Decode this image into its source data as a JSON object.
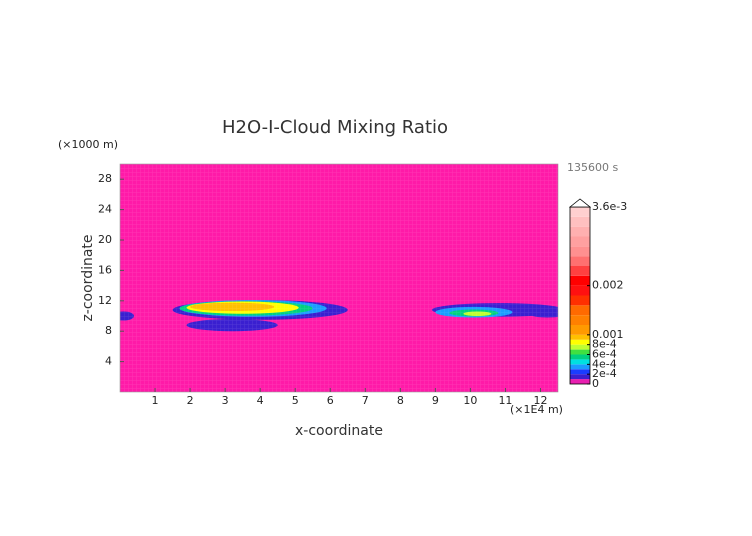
{
  "chart_data": {
    "type": "contour",
    "title": "H2O-I-Cloud Mixing Ratio",
    "y_unit": "(×1000 m)",
    "x_unit": "(×1E4 m)",
    "time": "135600 s",
    "xlabel": "x-coordinate",
    "ylabel": "z-coordinate",
    "xlim": [
      0,
      12.5
    ],
    "ylim": [
      0,
      30
    ],
    "xticks": [
      1,
      2,
      3,
      4,
      5,
      6,
      7,
      8,
      9,
      10,
      11,
      12
    ],
    "yticks": [
      4,
      8,
      12,
      16,
      20,
      24,
      28
    ],
    "background_color": "#ff1aa8",
    "features": [
      {
        "x": 0.1,
        "z": 10,
        "rx": 0.3,
        "rz": 0.6,
        "value": 0.00015
      },
      {
        "x": 3.2,
        "z": 8.8,
        "rx": 1.3,
        "rz": 0.8,
        "value": 0.00015
      },
      {
        "x": 4,
        "z": 10.8,
        "rx": 2.5,
        "rz": 1.3,
        "value": 0.00015
      },
      {
        "x": 3.8,
        "z": 11,
        "rx": 2.1,
        "rz": 1.1,
        "value": 0.00035
      },
      {
        "x": 3.6,
        "z": 11,
        "rx": 1.9,
        "rz": 0.95,
        "value": 0.00055
      },
      {
        "x": 3.5,
        "z": 11.1,
        "rx": 1.6,
        "rz": 0.8,
        "value": 0.00085
      },
      {
        "x": 3.2,
        "z": 11.2,
        "rx": 1.2,
        "rz": 0.55,
        "value": 0.00095
      },
      {
        "x": 10.8,
        "z": 10.8,
        "rx": 1.9,
        "rz": 0.9,
        "value": 0.00015
      },
      {
        "x": 12.2,
        "z": 10.2,
        "rx": 0.5,
        "rz": 0.4,
        "value": 0.00015
      },
      {
        "x": 10.1,
        "z": 10.5,
        "rx": 1.1,
        "rz": 0.7,
        "value": 0.00035
      },
      {
        "x": 10.1,
        "z": 10.4,
        "rx": 0.7,
        "rz": 0.45,
        "value": 0.00055
      },
      {
        "x": 10.2,
        "z": 10.3,
        "rx": 0.4,
        "rz": 0.3,
        "value": 0.00075
      }
    ],
    "colorbar": {
      "lim": [
        0,
        0.0036
      ],
      "ticks": [
        0,
        {
          "value": 0.0002,
          "label": "2e-4"
        },
        {
          "value": 0.0004,
          "label": "4e-4"
        },
        {
          "value": 0.0006,
          "label": "6e-4"
        },
        {
          "value": 0.0008,
          "label": "8e-4"
        },
        0.001,
        0.002,
        {
          "value": 0.0036,
          "label": "3.6e-3"
        }
      ],
      "levels": [
        0,
        0.0001,
        0.0002,
        0.0003,
        0.0004,
        0.0005,
        0.0006,
        0.0007,
        0.0008,
        0.0009,
        0.001,
        0.0012,
        0.0014,
        0.0016,
        0.0018,
        0.002,
        0.0022,
        0.0024,
        0.0026,
        0.0028,
        0.003,
        0.0032,
        0.0034,
        0.0036
      ],
      "colors": [
        "#e81fb0",
        "#3a1fd0",
        "#1a3cff",
        "#1a9cff",
        "#00e0e0",
        "#00d080",
        "#40e040",
        "#c0ff30",
        "#ffff00",
        "#ffc000",
        "#ff9a00",
        "#ff8000",
        "#ff6a00",
        "#ff3000",
        "#ff1010",
        "#ff0000",
        "#ff4040",
        "#ff7070",
        "#ff9090",
        "#ffa0a0",
        "#ffb0b0",
        "#ffc0c0",
        "#ffd0d0"
      ]
    }
  }
}
